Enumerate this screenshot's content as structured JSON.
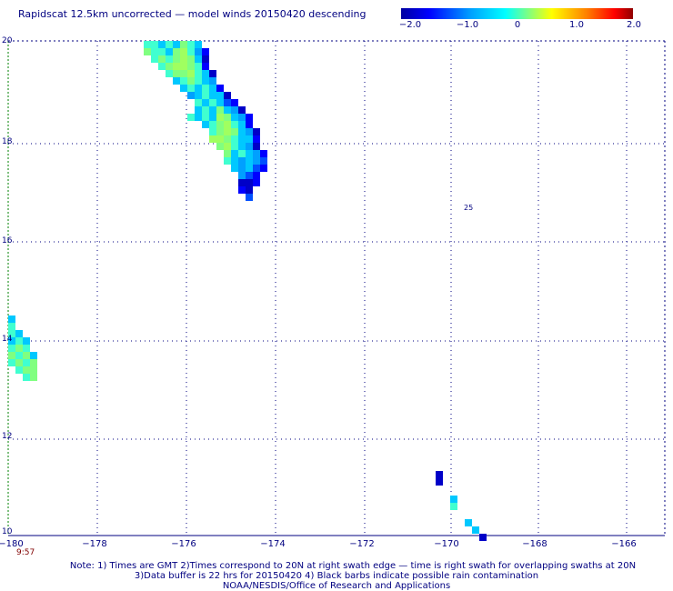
{
  "title": "Rapidscat 12.5km uncorrected — model winds 20150420 descending",
  "colorbar": {
    "ticks": [
      "−2.0",
      "−1.0",
      "0",
      "1.0",
      "2.0"
    ],
    "colors": [
      "#0000c8",
      "#0050ff",
      "#00c8ff",
      "#40ffd0",
      "#a0ff60",
      "#ffff00",
      "#ff9000",
      "#ff2000",
      "#900000"
    ]
  },
  "axes": {
    "x_ticks": [
      "−180",
      "−178",
      "−176",
      "−174",
      "−172",
      "−170",
      "−168",
      "−166"
    ],
    "y_ticks": [
      "20",
      "18",
      "16",
      "14",
      "12",
      "10"
    ]
  },
  "time_label": "9:57",
  "notes": {
    "line1": "Note: 1) Times are GMT 2)Times correspond to 20N at right swath edge — time is right swath for overlapping swaths at 20N",
    "line2": "3)Data buffer is 22 hrs for 20150420 4) Black barbs indicate possible rain contamination",
    "line3": "NOAA/NESDIS/Office of Research and Applications"
  },
  "marker_label": "25"
}
